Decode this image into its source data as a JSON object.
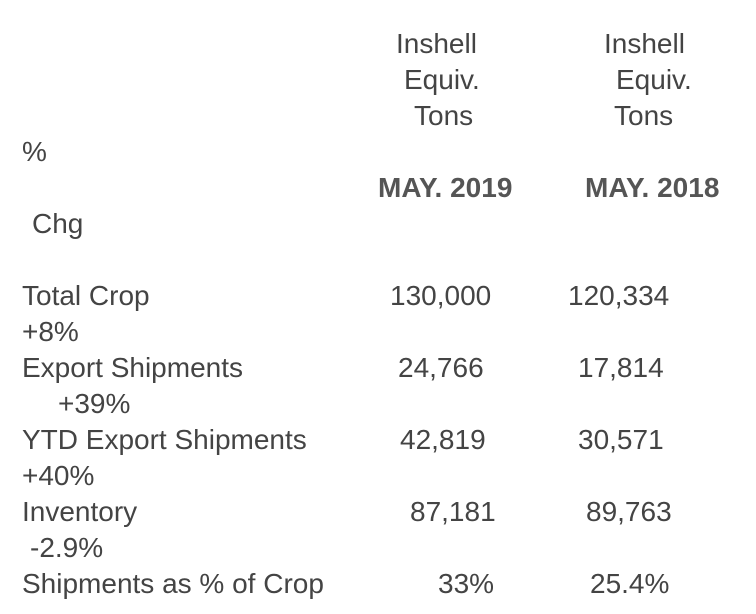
{
  "header": {
    "col1_line1": "Inshell",
    "col1_line2": "Equiv.",
    "col1_line3": "Tons",
    "col2_line1": "Inshell",
    "col2_line2": "Equiv.",
    "col2_line3": "Tons",
    "pct_symbol": "%",
    "chg_label": "Chg",
    "col1_period": "MAY. 2019",
    "col2_period": "MAY. 2018"
  },
  "rows": [
    {
      "label": "Total Crop",
      "v2019": "130,000",
      "v2018": "120,334",
      "chg": "+8%"
    },
    {
      "label": "Export Shipments",
      "v2019": "24,766",
      "v2018": "17,814",
      "chg": "+39%"
    },
    {
      "label": "YTD Export Shipments",
      "v2019": "42,819",
      "v2018": "30,571",
      "chg": "+40%"
    },
    {
      "label": "Inventory",
      "v2019": "87,181",
      "v2018": "89,763",
      "chg": "-2.9%"
    },
    {
      "label": "Shipments as % of Crop",
      "v2019": "33%",
      "v2018": "25.4%",
      "chg": ""
    }
  ]
}
